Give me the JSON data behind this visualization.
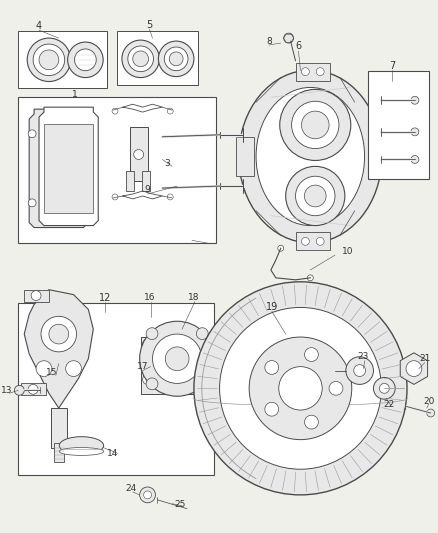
{
  "bg_color": "#f0f0eb",
  "line_color": "#4a4a4a",
  "text_color": "#333333",
  "fig_width": 4.38,
  "fig_height": 5.33,
  "dpi": 100,
  "white": "#ffffff",
  "light_gray": "#e8e8e8",
  "mid_gray": "#cccccc",
  "dark_gray": "#999999"
}
